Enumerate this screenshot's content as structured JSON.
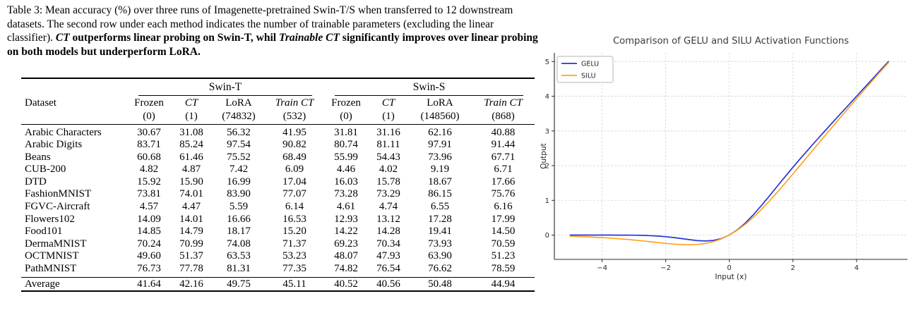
{
  "caption": {
    "segments": [
      {
        "text": "Table 3: Mean accuracy (%) over three runs of Imagenette-pretrained Swin-T/S when transferred to 12 downstream datasets. The second row under each method indicates the number of trainable parameters (excluding the linear classifier). ",
        "style": "normal"
      },
      {
        "text": "CT",
        "style": "bold-italic"
      },
      {
        "text": " outperforms linear probing on Swin-T, whil ",
        "style": "bold"
      },
      {
        "text": "Trainable CT",
        "style": "bold-italic"
      },
      {
        "text": " significantly improves over linear probing on both models but underperform LoRA.",
        "style": "bold"
      }
    ]
  },
  "table": {
    "dataset_header": "Dataset",
    "groups": [
      {
        "label": "Swin-T"
      },
      {
        "label": "Swin-S"
      }
    ],
    "columns": [
      {
        "label": "Frozen",
        "param": "(0)",
        "italic": false
      },
      {
        "label": "CT",
        "param": "(1)",
        "italic": true
      },
      {
        "label": "LoRA",
        "param": "(74832)",
        "italic": false
      },
      {
        "label": "Train CT",
        "param": "(532)",
        "italic": true
      },
      {
        "label": "Frozen",
        "param": "(0)",
        "italic": false
      },
      {
        "label": "CT",
        "param": "(1)",
        "italic": true
      },
      {
        "label": "LoRA",
        "param": "(148560)",
        "italic": false
      },
      {
        "label": "Train CT",
        "param": "(868)",
        "italic": true
      }
    ],
    "rows": [
      {
        "dataset": "Arabic Characters",
        "values": [
          "30.67",
          "31.08",
          "56.32",
          "41.95",
          "31.81",
          "31.16",
          "62.16",
          "40.88"
        ],
        "bold": [
          2,
          6
        ]
      },
      {
        "dataset": "Arabic Digits",
        "values": [
          "83.71",
          "85.24",
          "97.54",
          "90.82",
          "80.74",
          "81.11",
          "97.91",
          "91.44"
        ],
        "bold": [
          2,
          6
        ]
      },
      {
        "dataset": "Beans",
        "values": [
          "60.68",
          "61.46",
          "75.52",
          "68.49",
          "55.99",
          "54.43",
          "73.96",
          "67.71"
        ],
        "bold": [
          2,
          6
        ]
      },
      {
        "dataset": "CUB-200",
        "values": [
          "4.82",
          "4.87",
          "7.42",
          "6.09",
          "4.46",
          "4.02",
          "9.19",
          "6.71"
        ],
        "bold": [
          2,
          6
        ]
      },
      {
        "dataset": "DTD",
        "values": [
          "15.92",
          "15.90",
          "16.99",
          "17.04",
          "16.03",
          "15.78",
          "18.67",
          "17.66"
        ],
        "bold": [
          3,
          6
        ]
      },
      {
        "dataset": "FashionMNIST",
        "values": [
          "73.81",
          "74.01",
          "83.90",
          "77.07",
          "73.28",
          "73.29",
          "86.15",
          "75.76"
        ],
        "bold": [
          2,
          6
        ]
      },
      {
        "dataset": "FGVC-Aircraft",
        "values": [
          "4.57",
          "4.47",
          "5.59",
          "6.14",
          "4.61",
          "4.74",
          "6.55",
          "6.16"
        ],
        "bold": [
          3,
          6
        ]
      },
      {
        "dataset": "Flowers102",
        "values": [
          "14.09",
          "14.01",
          "16.66",
          "16.53",
          "12.93",
          "13.12",
          "17.28",
          "17.99"
        ],
        "bold": [
          2,
          7
        ]
      },
      {
        "dataset": "Food101",
        "values": [
          "14.85",
          "14.79",
          "18.17",
          "15.20",
          "14.22",
          "14.28",
          "19.41",
          "14.50"
        ],
        "bold": [
          2,
          6
        ]
      },
      {
        "dataset": "DermaMNIST",
        "values": [
          "70.24",
          "70.99",
          "74.08",
          "71.37",
          "69.23",
          "70.34",
          "73.93",
          "70.59"
        ],
        "bold": [
          2,
          6
        ]
      },
      {
        "dataset": "OCTMNIST",
        "values": [
          "49.60",
          "51.37",
          "63.53",
          "53.23",
          "48.07",
          "47.93",
          "63.90",
          "51.23"
        ],
        "bold": [
          2,
          6
        ]
      },
      {
        "dataset": "PathMNIST",
        "values": [
          "76.73",
          "77.78",
          "81.31",
          "77.35",
          "74.82",
          "76.54",
          "76.62",
          "78.59"
        ],
        "bold": [
          2,
          7
        ]
      }
    ],
    "average": {
      "dataset": "Average",
      "values": [
        "41.64",
        "42.16",
        "49.75",
        "45.11",
        "40.52",
        "40.56",
        "50.48",
        "44.94"
      ],
      "bold": [
        2,
        6
      ]
    }
  },
  "chart_data": {
    "type": "line",
    "title": "Comparison of GELU and SILU Activation Functions",
    "xlabel": "Input (x)",
    "ylabel": "Output",
    "xlim": [
      -5.5,
      5.6
    ],
    "ylim": [
      -0.7,
      5.25
    ],
    "xticks": [
      -4,
      -2,
      0,
      2,
      4
    ],
    "xtick_labels": [
      "−4",
      "−2",
      "0",
      "2",
      "4"
    ],
    "yticks": [
      0,
      1,
      2,
      3,
      4,
      5
    ],
    "ytick_labels": [
      "0",
      "1",
      "2",
      "3",
      "4",
      "5"
    ],
    "grid": true,
    "legend_position": "upper left",
    "x": [
      -5,
      -4.75,
      -4.5,
      -4.25,
      -4,
      -3.75,
      -3.5,
      -3.25,
      -3,
      -2.75,
      -2.5,
      -2.25,
      -2,
      -1.75,
      -1.5,
      -1.25,
      -1,
      -0.75,
      -0.5,
      -0.25,
      0,
      0.25,
      0.5,
      0.75,
      1,
      1.25,
      1.5,
      1.75,
      2,
      2.25,
      2.5,
      2.75,
      3,
      3.25,
      3.5,
      3.75,
      4,
      4.25,
      4.5,
      4.75,
      5
    ],
    "series": [
      {
        "name": "GELU",
        "color": "#2435da",
        "values": [
          0,
          0,
          0,
          0,
          0,
          0,
          -0.001,
          -0.002,
          -0.004,
          -0.008,
          -0.016,
          -0.027,
          -0.046,
          -0.07,
          -0.1,
          -0.132,
          -0.159,
          -0.17,
          -0.154,
          -0.1,
          0,
          0.15,
          0.346,
          0.58,
          0.841,
          1.118,
          1.4,
          1.68,
          1.954,
          2.223,
          2.484,
          2.742,
          2.996,
          3.248,
          3.499,
          3.75,
          4,
          4.25,
          4.5,
          4.75,
          5
        ]
      },
      {
        "name": "SILU",
        "color": "#ffa320",
        "values": [
          -0.033,
          -0.041,
          -0.049,
          -0.06,
          -0.072,
          -0.086,
          -0.103,
          -0.121,
          -0.142,
          -0.165,
          -0.19,
          -0.215,
          -0.238,
          -0.259,
          -0.274,
          -0.278,
          -0.269,
          -0.241,
          -0.189,
          -0.109,
          0,
          0.141,
          0.311,
          0.509,
          0.731,
          0.972,
          1.226,
          1.491,
          1.762,
          2.035,
          2.31,
          2.585,
          2.858,
          3.129,
          3.397,
          3.664,
          3.928,
          4.19,
          4.451,
          4.709,
          4.967
        ]
      }
    ],
    "colors": {
      "grid": "#cfcfcf",
      "axis": "#2b2b2b",
      "title": "#3c3c3c",
      "legend_border": "#b5b5b5"
    }
  }
}
